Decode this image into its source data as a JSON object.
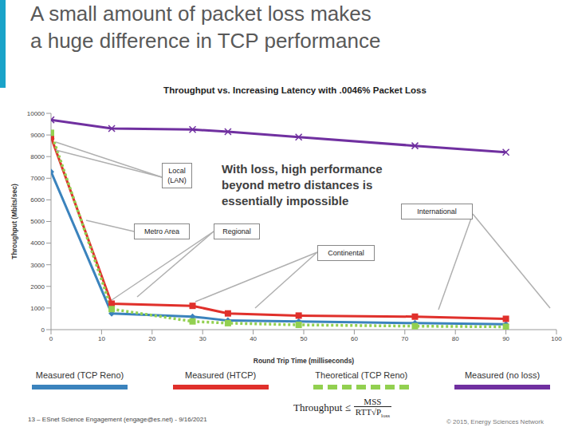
{
  "slide": {
    "title": "A small amount of packet loss makes a huge difference in TCP performance",
    "footer": "13 – ESnet Science Engagement (engage@es.net) - 9/16/2021",
    "copyright": "© 2015, Energy Sciences Network",
    "formula": {
      "lhs": "Throughput ≤",
      "numerator": "MSS",
      "denominator": "RTT√P",
      "subscript": "loss"
    }
  },
  "chart_data": {
    "type": "line",
    "title": "Throughput vs. Increasing Latency with .0046% Packet Loss",
    "x_label": "Round Trip Time (milliseconds)",
    "y_label": "Throughput (Mbits/sec)",
    "x": [
      0,
      12,
      28,
      35,
      49,
      72,
      90
    ],
    "xlim": [
      0,
      100
    ],
    "xticks": [
      0,
      10,
      20,
      30,
      40,
      50,
      60,
      70,
      80,
      90,
      100
    ],
    "ylim": [
      0,
      10000
    ],
    "yticks": [
      0,
      1000,
      2000,
      3000,
      4000,
      5000,
      6000,
      7000,
      8000,
      9000,
      10000
    ],
    "grid": false,
    "legend": "bottom",
    "annotations": [
      "Local (LAN)",
      "Metro Area",
      "Regional",
      "Continental",
      "International",
      "With loss, high performance beyond metro distances is essentially impossible"
    ],
    "series": [
      {
        "name": "Measured (TCP Reno)",
        "color": "#3b83bd",
        "marker": "diamond",
        "line_style": "solid",
        "values": [
          7300,
          750,
          600,
          420,
          380,
          300,
          250
        ]
      },
      {
        "name": "Measured (HTCP)",
        "color": "#e0302b",
        "marker": "square",
        "line_style": "solid",
        "values": [
          8900,
          1200,
          1100,
          750,
          650,
          600,
          500
        ]
      },
      {
        "name": "Theoretical (TCP Reno)",
        "color": "#92d050",
        "marker": "square",
        "line_style": "dotted",
        "values": [
          9100,
          950,
          380,
          300,
          220,
          160,
          130
        ]
      },
      {
        "name": "Measured (no loss)",
        "color": "#7030a0",
        "marker": "x",
        "line_style": "solid",
        "values": [
          9700,
          9300,
          9250,
          9150,
          8900,
          8500,
          8200
        ]
      }
    ]
  }
}
